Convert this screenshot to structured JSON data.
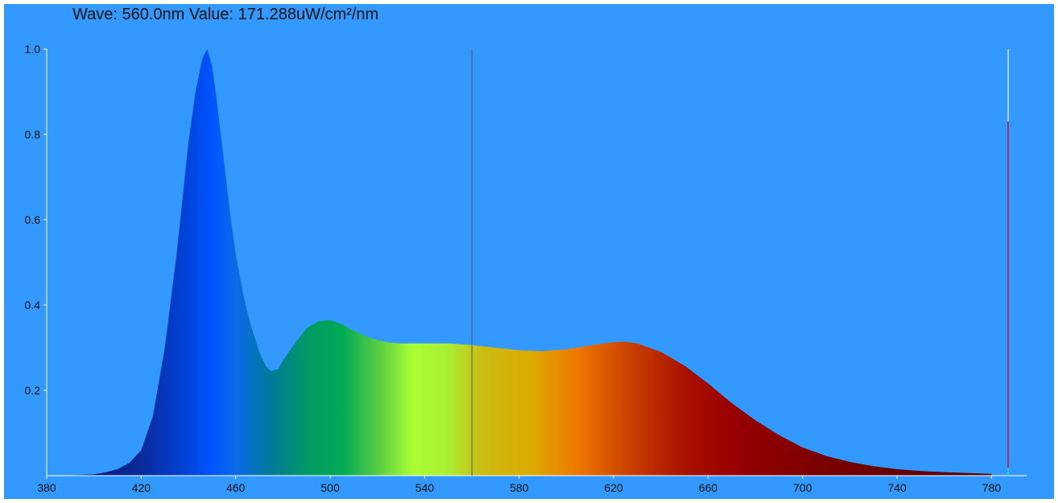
{
  "readout": {
    "text": "Wave: 560.0nm Value: 171.288uW/cm²/nm"
  },
  "chart_data": {
    "type": "area",
    "title": "",
    "xlabel": "",
    "ylabel": "",
    "xlim": [
      380,
      788
    ],
    "ylim": [
      0,
      1.0
    ],
    "x_ticks": [
      380,
      420,
      460,
      500,
      540,
      580,
      620,
      660,
      700,
      740,
      780
    ],
    "x_tick_labels": [
      "380",
      "420",
      "460",
      "500",
      "540",
      "580",
      "620",
      "660",
      "700",
      "740",
      "780"
    ],
    "y_ticks": [
      0.2,
      0.4,
      0.6,
      0.8,
      1.0
    ],
    "y_tick_labels": [
      "0.2",
      "0.4",
      "0.6",
      "0.8",
      "1.0"
    ],
    "grid": false,
    "cursor_wavelength": 560,
    "side_marker_wavelength": 787,
    "side_marker_level": 0.83,
    "colors": {
      "background": "#3399ff",
      "axis": "#ffffff",
      "cursor": "#555555",
      "side_marker": "#993366"
    },
    "series": [
      {
        "x": [
          380,
          390,
          400,
          405,
          410,
          415,
          420,
          425,
          430,
          435,
          440,
          443,
          446,
          448,
          450,
          452,
          455,
          458,
          460,
          463,
          466,
          470,
          473,
          475,
          478,
          480,
          485,
          490,
          495,
          500,
          505,
          510,
          515,
          520,
          525,
          530,
          540,
          550,
          560,
          570,
          580,
          590,
          600,
          610,
          620,
          625,
          630,
          640,
          650,
          660,
          670,
          680,
          690,
          700,
          710,
          720,
          730,
          740,
          750,
          760,
          770,
          780
        ],
        "y": [
          0.0,
          0.001,
          0.003,
          0.008,
          0.015,
          0.03,
          0.06,
          0.14,
          0.3,
          0.52,
          0.78,
          0.9,
          0.98,
          1.0,
          0.96,
          0.88,
          0.74,
          0.6,
          0.52,
          0.43,
          0.36,
          0.29,
          0.255,
          0.245,
          0.25,
          0.27,
          0.31,
          0.345,
          0.362,
          0.365,
          0.355,
          0.34,
          0.327,
          0.318,
          0.312,
          0.31,
          0.31,
          0.31,
          0.306,
          0.3,
          0.294,
          0.292,
          0.296,
          0.305,
          0.313,
          0.314,
          0.31,
          0.29,
          0.258,
          0.216,
          0.17,
          0.13,
          0.095,
          0.066,
          0.046,
          0.032,
          0.022,
          0.015,
          0.011,
          0.008,
          0.006,
          0.004
        ]
      }
    ]
  }
}
